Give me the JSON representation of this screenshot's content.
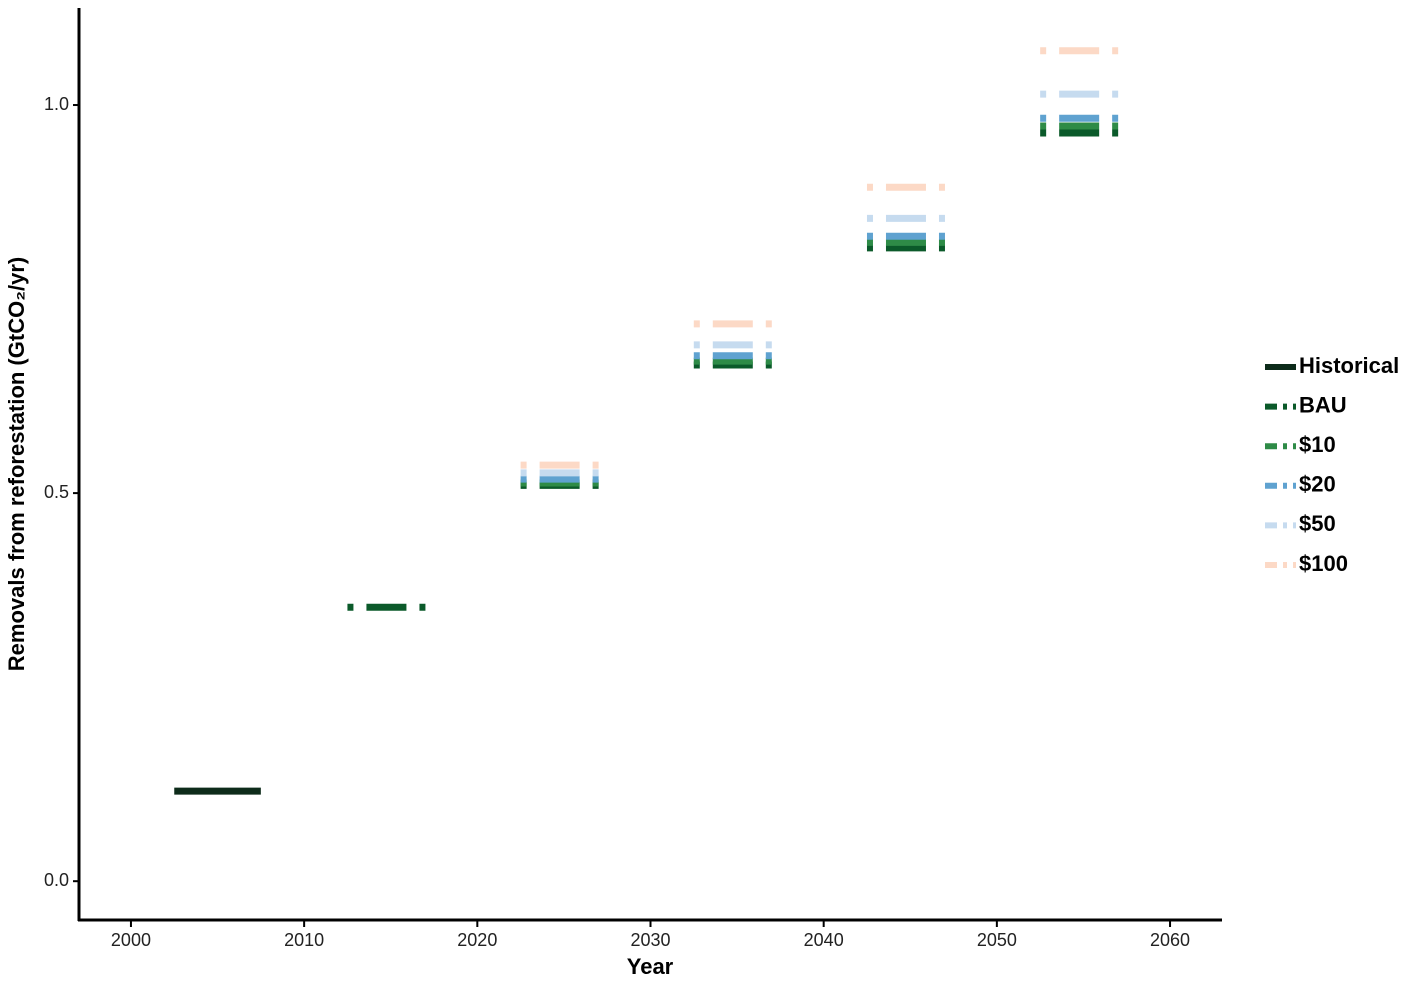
{
  "chart_data": {
    "type": "segment",
    "x_label": "Year",
    "y_label": "Removals from reforestation (GtCO₂/yr)",
    "xlim": [
      1997,
      2063
    ],
    "xticks": [
      2000,
      2010,
      2020,
      2030,
      2040,
      2050,
      2060
    ],
    "ylim": [
      -0.05,
      1.125
    ],
    "yticks": [
      {
        "value": 0,
        "label": "0.0"
      },
      0.5,
      {
        "value": 1,
        "label": "1.0"
      }
    ],
    "grid": false,
    "legend": "right",
    "series": [
      {
        "name": "Historical",
        "color": "#0d2b1a",
        "linetype": "solid",
        "x_start": [
          2002.5
        ],
        "x_end": [
          2007.5
        ],
        "values": [
          0.116
        ]
      },
      {
        "name": "BAU",
        "color": "#0b5a2a",
        "linetype": "dashed",
        "x_start": [
          2012.5,
          2022.5,
          2032.5,
          2042.5,
          2052.5
        ],
        "x_end": [
          2017.5,
          2027.5,
          2037.5,
          2047.5,
          2057.5
        ],
        "values": [
          0.353,
          0.51,
          0.665,
          0.816,
          0.964
        ]
      },
      {
        "name": "$10",
        "color": "#2e8b47",
        "linetype": "dashed",
        "x_start": [
          2022.5,
          2032.5,
          2042.5,
          2052.5
        ],
        "x_end": [
          2027.5,
          2037.5,
          2047.5,
          2057.5
        ],
        "values": [
          0.513,
          0.67,
          0.823,
          0.973
        ]
      },
      {
        "name": "$20",
        "color": "#5fa2d0",
        "linetype": "dashed",
        "x_start": [
          2022.5,
          2032.5,
          2042.5,
          2052.5
        ],
        "x_end": [
          2027.5,
          2037.5,
          2047.5,
          2057.5
        ],
        "values": [
          0.518,
          0.677,
          0.831,
          0.983
        ]
      },
      {
        "name": "$50",
        "color": "#c6dbef",
        "linetype": "dashed",
        "x_start": [
          2022.5,
          2032.5,
          2042.5,
          2052.5
        ],
        "x_end": [
          2027.5,
          2037.5,
          2047.5,
          2057.5
        ],
        "values": [
          0.526,
          0.691,
          0.854,
          1.014
        ]
      },
      {
        "name": "$100",
        "color": "#fcd9c6",
        "linetype": "dashed",
        "x_start": [
          2022.5,
          2032.5,
          2042.5,
          2052.5
        ],
        "x_end": [
          2027.5,
          2037.5,
          2047.5,
          2057.5
        ],
        "values": [
          0.536,
          0.718,
          0.894,
          1.07
        ]
      }
    ]
  }
}
